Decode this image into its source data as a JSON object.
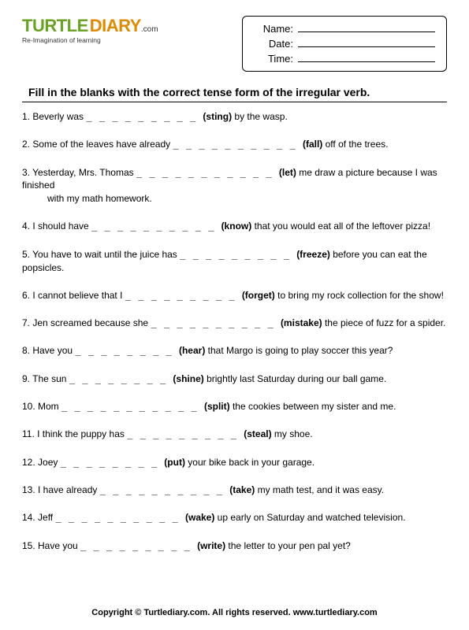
{
  "logo": {
    "part1": "TURTLE",
    "part2": "DIARY",
    "dotcom": ".com",
    "tagline": "Re-Imagination of learning",
    "color1": "#6aa221",
    "color2": "#e08a00"
  },
  "info_labels": {
    "name": "Name:",
    "date": "Date:",
    "time": "Time:"
  },
  "instruction": "Fill in the blanks with the correct tense form of the irregular verb.",
  "questions": [
    {
      "n": "1.",
      "pre": "Beverly was  ",
      "blank": "_ _ _ _ _ _ _ _ _",
      "verb": "(sting)",
      "post": " by the wasp."
    },
    {
      "n": "2.",
      "pre": "Some of the leaves have already  ",
      "blank": "_ _ _ _ _ _ _ _ _ _",
      "verb": "(fall)",
      "post": " off of the trees."
    },
    {
      "n": "3.",
      "pre": "Yesterday, Mrs. Thomas ",
      "blank": "_ _ _ _ _ _ _ _ _  _ _",
      "verb": "(let)",
      "post": " me draw a picture because I was finished",
      "cont": "with my math homework."
    },
    {
      "n": "4.",
      "pre": "I should have ",
      "blank": "_ _ _ _ _ _ _ _ _ _",
      "verb": "(know)",
      "post": " that you would eat all of the leftover pizza!"
    },
    {
      "n": "5.",
      "pre": "You have to wait until the juice has ",
      "blank": "_ _ _ _ _ _ _ _ _",
      "verb": "(freeze)",
      "post": " before you can eat the popsicles."
    },
    {
      "n": "6.",
      "pre": "I cannot believe that I ",
      "blank": "_ _ _ _ _ _ _ _ _",
      "verb": "(forget)",
      "post": " to bring my rock collection for the show!"
    },
    {
      "n": "7.",
      "pre": "Jen screamed because she ",
      "blank": "_ _ _ _ _ _ _ _ _ _",
      "verb": "(mistake)",
      "post": " the piece of fuzz for a spider."
    },
    {
      "n": "8.",
      "pre": "Have you ",
      "blank": "_ _ _ _ _ _ _ _",
      "verb": "(hear)",
      "post": " that Margo is going to play soccer this year?"
    },
    {
      "n": "9.",
      "pre": "The sun ",
      "blank": "_ _ _ _ _ _ _ _",
      "verb": "(shine)",
      "post": " brightly last Saturday during our ball game."
    },
    {
      "n": "10.",
      "pre": "Mom ",
      "blank": "_ _ _ _ _ _ _ _ _ _ _",
      "verb": "(split)",
      "post": " the cookies between my sister and me."
    },
    {
      "n": "11.",
      "pre": "I think the puppy has ",
      "blank": "_ _ _ _ _ _ _ _ _",
      "verb": "(steal)",
      "post": " my shoe."
    },
    {
      "n": "12.",
      "pre": "Joey ",
      "blank": "_ _ _ _ _ _ _ _ ",
      "verb": "(put)",
      "post": " your bike back in your garage."
    },
    {
      "n": "13.",
      "pre": "I have already ",
      "blank": "_ _ _ _ _ _ _ _ _ _",
      "verb": "(take)",
      "post": " my math test, and it was easy."
    },
    {
      "n": "14.",
      "pre": "Jeff  ",
      "blank": "_ _ _ _ _ _ _ _ _ _",
      "verb": "(wake)",
      "post": " up early on Saturday and watched television."
    },
    {
      "n": "15.",
      "pre": "Have you ",
      "blank": "_ _ _ _ _ _ _ _ _",
      "verb": "(write)",
      "post": " the letter to your pen pal yet?"
    }
  ],
  "footer": "Copyright © Turtlediary.com. All rights reserved.   www.turtlediary.com"
}
